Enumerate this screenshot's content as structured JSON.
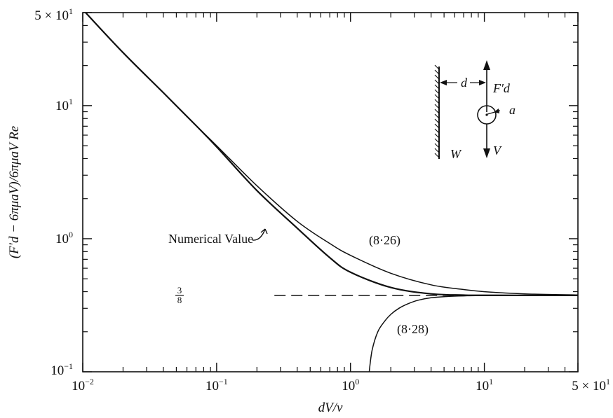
{
  "chart_data": {
    "type": "line",
    "xlabel": "dV/ν",
    "ylabel": "(F′d − 6πμaV)/6πμaV Re",
    "x_scale": "log",
    "y_scale": "log",
    "xlim": [
      0.01,
      50
    ],
    "ylim": [
      0.1,
      50
    ],
    "x_ticks": [
      {
        "mantissa": "",
        "base": "10",
        "exp": "−2",
        "value": 0.01
      },
      {
        "mantissa": "",
        "base": "10",
        "exp": "−1",
        "value": 0.1
      },
      {
        "mantissa": "",
        "base": "10",
        "exp": "0",
        "value": 1
      },
      {
        "mantissa": "",
        "base": "10",
        "exp": "1",
        "value": 10
      },
      {
        "mantissa": "5 × ",
        "base": "10",
        "exp": "1",
        "value": 50
      }
    ],
    "y_ticks": [
      {
        "mantissa": "",
        "base": "10",
        "exp": "−1",
        "value": 0.1
      },
      {
        "mantissa": "",
        "base": "10",
        "exp": "0",
        "value": 1
      },
      {
        "mantissa": "",
        "base": "10",
        "exp": "1",
        "value": 10
      },
      {
        "mantissa": "5 × ",
        "base": "10",
        "exp": "1",
        "value": 50
      }
    ],
    "series": [
      {
        "name": "Numerical Value",
        "style": "solid-thick",
        "x": [
          0.0105,
          0.02,
          0.04,
          0.07,
          0.1,
          0.2,
          0.4,
          0.7,
          1.0,
          2.0,
          4.0,
          7.0,
          10,
          50
        ],
        "y": [
          50,
          25,
          12.5,
          7.1,
          4.9,
          2.3,
          1.2,
          0.72,
          0.56,
          0.43,
          0.385,
          0.377,
          0.376,
          0.375
        ]
      },
      {
        "name": "(8·26)",
        "style": "solid",
        "x": [
          0.0105,
          0.02,
          0.04,
          0.07,
          0.1,
          0.2,
          0.4,
          0.7,
          1.0,
          2.0,
          4.0,
          7.0,
          10,
          20,
          50
        ],
        "y": [
          50,
          25,
          12.5,
          7.1,
          5.0,
          2.5,
          1.35,
          0.92,
          0.75,
          0.55,
          0.45,
          0.415,
          0.4,
          0.385,
          0.378
        ]
      },
      {
        "name": "(8·28)",
        "style": "solid",
        "x": [
          1.38,
          1.45,
          1.6,
          1.8,
          2.0,
          2.3,
          2.7,
          3.2,
          4.0,
          5.0,
          7.0,
          10,
          50
        ],
        "y": [
          0.1,
          0.145,
          0.2,
          0.24,
          0.27,
          0.3,
          0.325,
          0.345,
          0.36,
          0.367,
          0.372,
          0.374,
          0.375
        ]
      },
      {
        "name": "3/8",
        "style": "dashed",
        "x": [
          0.27,
          50
        ],
        "y": [
          0.375,
          0.375
        ]
      }
    ],
    "annotations": {
      "numerical_value": "Numerical Value",
      "eq_8_26": "(8·26)",
      "eq_8_28": "(8·28)",
      "three_eighths_num": "3",
      "three_eighths_den": "8"
    },
    "inset": {
      "wall_label": "W",
      "distance_label": "d",
      "force_label": "F′d",
      "velocity_label": "V",
      "radius_label": "a"
    }
  }
}
